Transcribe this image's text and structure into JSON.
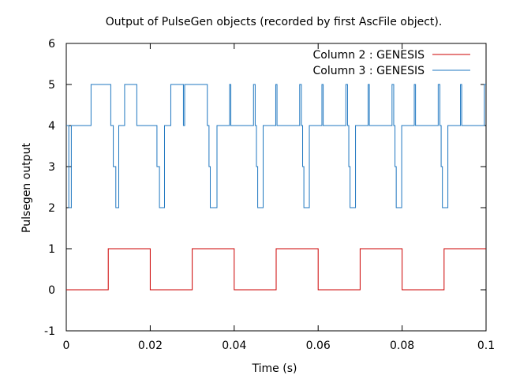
{
  "chart_data": {
    "type": "line",
    "title": "Output of PulseGen objects (recorded by first AscFile object).",
    "xlabel": "Time (s)",
    "ylabel": "Pulsegen output",
    "xlim": [
      0,
      0.1
    ],
    "ylim": [
      -1,
      6
    ],
    "xticks": [
      0,
      0.02,
      0.04,
      0.06,
      0.08,
      0.1
    ],
    "xtick_labels": [
      "0",
      "0.02",
      "0.04",
      "0.06",
      "0.08",
      "0.1"
    ],
    "yticks": [
      -1,
      0,
      1,
      2,
      3,
      4,
      5,
      6
    ],
    "ytick_labels": [
      "-1",
      "0",
      "1",
      "2",
      "3",
      "4",
      "5",
      "6"
    ],
    "grid": false,
    "legend_position": "top-right",
    "series": [
      {
        "name": "Column 2 : GENESIS",
        "color": "#cc0000",
        "x": [
          0,
          0.01,
          0.01,
          0.02,
          0.02,
          0.03,
          0.03,
          0.04,
          0.04,
          0.05,
          0.05,
          0.06,
          0.06,
          0.07,
          0.07,
          0.08,
          0.08,
          0.09,
          0.09,
          0.1
        ],
        "y": [
          0,
          0,
          1,
          1,
          0,
          0,
          1,
          1,
          0,
          0,
          1,
          1,
          0,
          0,
          1,
          1,
          0,
          0,
          1,
          1
        ]
      },
      {
        "name": "Column 3 : GENESIS",
        "color": "#1f77c0",
        "x": [
          0,
          0.0006,
          0.0006,
          0.0012,
          0.0012,
          0.0029,
          0.0029,
          0.0059,
          0.0059,
          0.0106,
          0.0106,
          0.0112,
          0.0112,
          0.0118,
          0.0118,
          0.0122,
          0.0122,
          0.0125,
          0.0125,
          0.0139,
          0.0139,
          0.0168,
          0.0168,
          0.0216,
          0.0216,
          0.0222,
          0.0222,
          0.0229,
          0.0229,
          0.0234,
          0.0234,
          0.0249,
          0.0249,
          0.0279,
          0.0279,
          0.0282,
          0.0282,
          0.0336,
          0.0336,
          0.034,
          0.034,
          0.0343,
          0.0343,
          0.0346,
          0.0346,
          0.0359,
          0.0359,
          0.0389,
          0.0389,
          0.0392,
          0.0392,
          0.0446,
          0.0446,
          0.045,
          0.045,
          0.0453,
          0.0453,
          0.0456,
          0.0456,
          0.0469,
          0.0469,
          0.0499,
          0.0499,
          0.0502,
          0.0502,
          0.0556,
          0.0556,
          0.056,
          0.056,
          0.0563,
          0.0563,
          0.0566,
          0.0566,
          0.0579,
          0.0579,
          0.0609,
          0.0609,
          0.0612,
          0.0612,
          0.0666,
          0.0666,
          0.067,
          0.067,
          0.0673,
          0.0673,
          0.0676,
          0.0676,
          0.0689,
          0.0689,
          0.0719,
          0.0719,
          0.0722,
          0.0722,
          0.0776,
          0.0776,
          0.078,
          0.078,
          0.0783,
          0.0783,
          0.0786,
          0.0786,
          0.0799,
          0.0799,
          0.0829,
          0.0829,
          0.0832,
          0.0832,
          0.0886,
          0.0886,
          0.089,
          0.089,
          0.0893,
          0.0893,
          0.0896,
          0.0896,
          0.0909,
          0.0909,
          0.0939,
          0.0939,
          0.0942,
          0.0942,
          0.0996,
          0.0996,
          0.1
        ],
        "y": [
          4,
          4,
          2,
          2,
          4,
          4,
          4,
          4,
          5,
          5,
          4,
          4,
          3,
          3,
          2,
          2,
          2,
          2,
          4,
          4,
          5,
          5,
          4,
          4,
          3,
          3,
          2,
          2,
          2,
          2,
          4,
          4,
          5,
          5,
          4,
          4,
          5,
          5,
          4,
          4,
          3,
          3,
          2,
          2,
          2,
          2,
          4,
          4,
          5,
          5,
          4,
          4,
          5,
          5,
          4,
          4,
          3,
          3,
          2,
          2,
          4,
          4,
          5,
          5,
          4,
          4,
          5,
          5,
          4,
          4,
          3,
          3,
          2,
          2,
          4,
          4,
          5,
          5,
          4,
          4,
          5,
          5,
          4,
          4,
          3,
          3,
          2,
          2,
          4,
          4,
          5,
          5,
          4,
          4,
          5,
          5,
          4,
          4,
          3,
          3,
          2,
          2,
          4,
          4,
          5,
          5,
          4,
          4,
          5,
          5,
          4,
          4,
          3,
          3,
          2,
          2,
          4,
          4,
          5,
          5,
          4,
          4,
          5,
          5
        ]
      }
    ]
  }
}
